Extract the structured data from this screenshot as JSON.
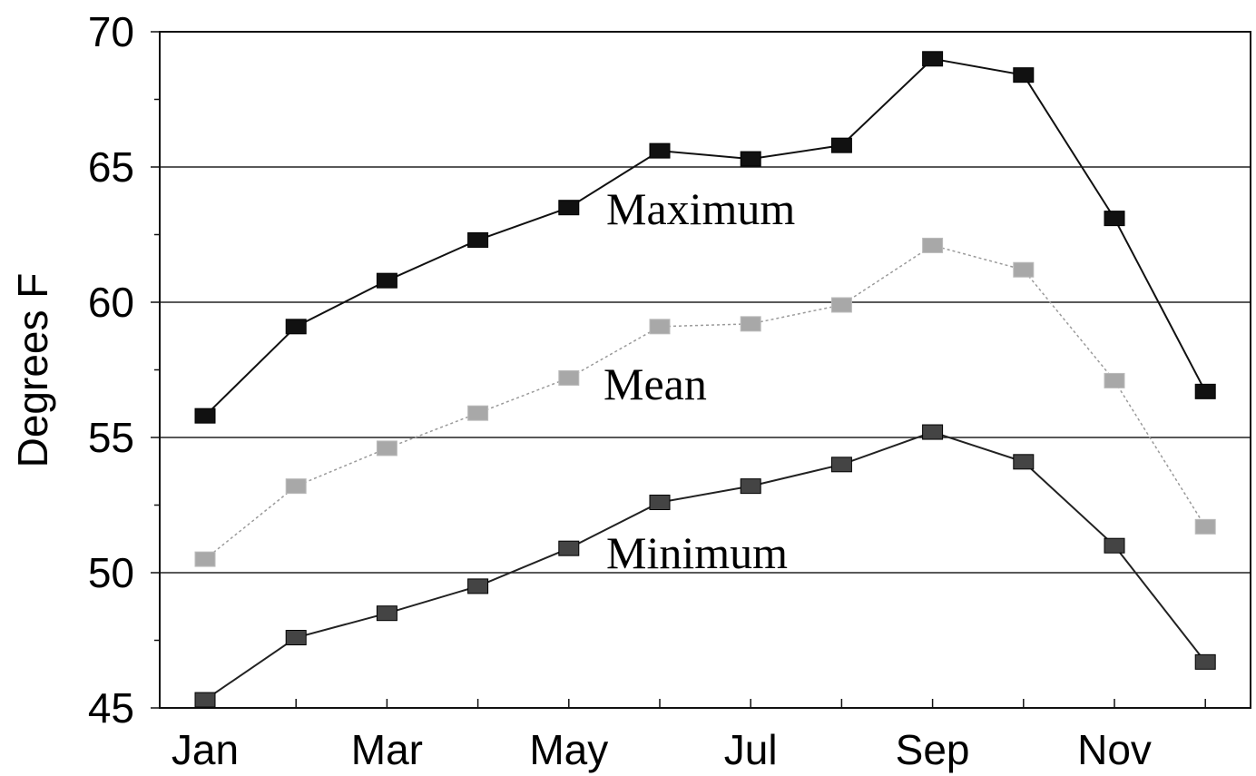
{
  "chart_data": {
    "type": "line",
    "ylabel": "Degrees F",
    "xlabel": "",
    "ylim": [
      45,
      70
    ],
    "yticks": [
      "45",
      "50",
      "55",
      "60",
      "65",
      "70"
    ],
    "categories": [
      "Jan",
      "Feb",
      "Mar",
      "Apr",
      "May",
      "Jun",
      "Jul",
      "Aug",
      "Sep",
      "Oct",
      "Nov",
      "Dec"
    ],
    "x_tick_labels": [
      "Jan",
      "",
      "Mar",
      "",
      "May",
      "",
      "Jul",
      "",
      "Sep",
      "",
      "Nov",
      ""
    ],
    "grid": "horizontal",
    "series": [
      {
        "name": "Maximum",
        "color": "#111111",
        "marker_color": "#111111",
        "values": [
          55.8,
          59.1,
          60.8,
          62.3,
          63.5,
          65.6,
          65.3,
          65.8,
          69.0,
          68.4,
          63.1,
          56.7
        ]
      },
      {
        "name": "Mean",
        "color": "#9a9a9a",
        "marker_color": "#a8a8a8",
        "values": [
          50.5,
          53.2,
          54.6,
          55.9,
          57.2,
          59.1,
          59.2,
          59.9,
          62.1,
          61.2,
          57.1,
          51.7
        ]
      },
      {
        "name": "Minimum",
        "color": "#222222",
        "marker_color": "#444444",
        "values": [
          45.3,
          47.6,
          48.5,
          49.5,
          50.9,
          52.6,
          53.2,
          54.0,
          55.2,
          54.1,
          51.0,
          46.7
        ]
      }
    ]
  }
}
